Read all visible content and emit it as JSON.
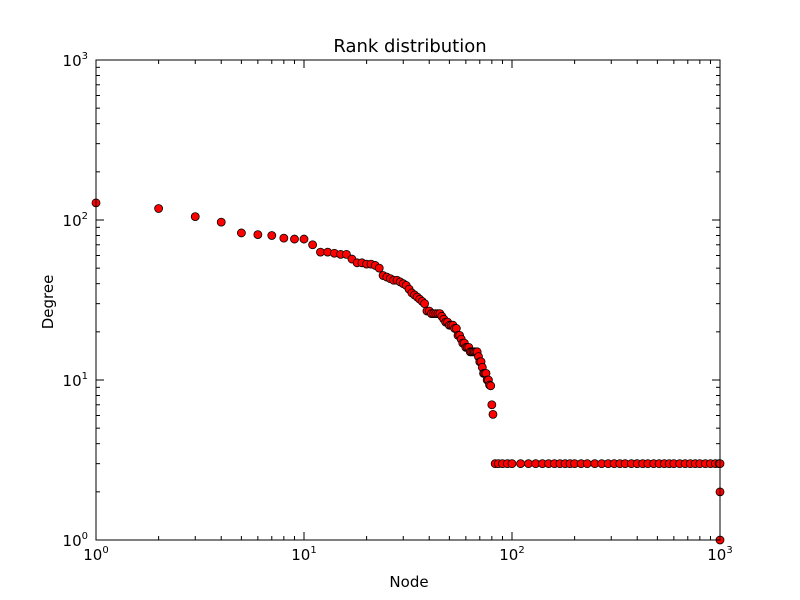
{
  "chart_data": {
    "type": "scatter",
    "title": "Rank distribution",
    "xlabel": "Node",
    "ylabel": "Degree",
    "xscale": "log",
    "yscale": "log",
    "xlim": [
      1,
      1000
    ],
    "ylim": [
      1,
      1000
    ],
    "grid": false,
    "legend": "none",
    "marker_color": "#ff0000",
    "marker_edge": "#000000",
    "x_ticks": [
      {
        "base": "10",
        "exp": "0",
        "value": 1
      },
      {
        "base": "10",
        "exp": "1",
        "value": 10
      },
      {
        "base": "10",
        "exp": "2",
        "value": 100
      },
      {
        "base": "10",
        "exp": "3",
        "value": 1000
      }
    ],
    "y_ticks": [
      {
        "base": "10",
        "exp": "0",
        "value": 1
      },
      {
        "base": "10",
        "exp": "1",
        "value": 10
      },
      {
        "base": "10",
        "exp": "2",
        "value": 100
      },
      {
        "base": "10",
        "exp": "3",
        "value": 1000
      }
    ],
    "points": [
      [
        1,
        128
      ],
      [
        2,
        118
      ],
      [
        3,
        105
      ],
      [
        4,
        97
      ],
      [
        5,
        83
      ],
      [
        6,
        81
      ],
      [
        7,
        80
      ],
      [
        8,
        77
      ],
      [
        9,
        76
      ],
      [
        10,
        76
      ],
      [
        11,
        70
      ],
      [
        12,
        63
      ],
      [
        13,
        63
      ],
      [
        14,
        62
      ],
      [
        15,
        61
      ],
      [
        16,
        61
      ],
      [
        17,
        57
      ],
      [
        18,
        54
      ],
      [
        19,
        54
      ],
      [
        20,
        53
      ],
      [
        21,
        53
      ],
      [
        22,
        52
      ],
      [
        23,
        50
      ],
      [
        24,
        45
      ],
      [
        25,
        44
      ],
      [
        26,
        43
      ],
      [
        27,
        42
      ],
      [
        28,
        42
      ],
      [
        29,
        41
      ],
      [
        30,
        40
      ],
      [
        31,
        39
      ],
      [
        32,
        37
      ],
      [
        33,
        35
      ],
      [
        34,
        34
      ],
      [
        35,
        33
      ],
      [
        36,
        32
      ],
      [
        37,
        31
      ],
      [
        38,
        30
      ],
      [
        39,
        27
      ],
      [
        40,
        27
      ],
      [
        41,
        26
      ],
      [
        42,
        26
      ],
      [
        43,
        26
      ],
      [
        44,
        26
      ],
      [
        45,
        26
      ],
      [
        46,
        25
      ],
      [
        47,
        24
      ],
      [
        48,
        23
      ],
      [
        49,
        23
      ],
      [
        50,
        22
      ],
      [
        51,
        22
      ],
      [
        52,
        22
      ],
      [
        53,
        21
      ],
      [
        54,
        21
      ],
      [
        55,
        19
      ],
      [
        56,
        19
      ],
      [
        57,
        18
      ],
      [
        58,
        17
      ],
      [
        59,
        17
      ],
      [
        60,
        16
      ],
      [
        61,
        16
      ],
      [
        62,
        16
      ],
      [
        63,
        15
      ],
      [
        64,
        15
      ],
      [
        65,
        15
      ],
      [
        66,
        15
      ],
      [
        67,
        15
      ],
      [
        68,
        15
      ],
      [
        69,
        14
      ],
      [
        70,
        13
      ],
      [
        71,
        13
      ],
      [
        72,
        12
      ],
      [
        73,
        11
      ],
      [
        74,
        11
      ],
      [
        75,
        11
      ],
      [
        76,
        10
      ],
      [
        77,
        10
      ],
      [
        78,
        9.3
      ],
      [
        79,
        9.2
      ],
      [
        80,
        7
      ],
      [
        81,
        6.1
      ],
      [
        83,
        3
      ],
      [
        86,
        3
      ],
      [
        90,
        3
      ],
      [
        95,
        3
      ],
      [
        100,
        3
      ],
      [
        110,
        3
      ],
      [
        120,
        3
      ],
      [
        130,
        3
      ],
      [
        140,
        3
      ],
      [
        150,
        3
      ],
      [
        160,
        3
      ],
      [
        170,
        3
      ],
      [
        180,
        3
      ],
      [
        190,
        3
      ],
      [
        200,
        3
      ],
      [
        215,
        3
      ],
      [
        230,
        3
      ],
      [
        250,
        3
      ],
      [
        270,
        3
      ],
      [
        290,
        3
      ],
      [
        310,
        3
      ],
      [
        330,
        3
      ],
      [
        350,
        3
      ],
      [
        375,
        3
      ],
      [
        400,
        3
      ],
      [
        425,
        3
      ],
      [
        450,
        3
      ],
      [
        480,
        3
      ],
      [
        510,
        3
      ],
      [
        540,
        3
      ],
      [
        570,
        3
      ],
      [
        600,
        3
      ],
      [
        640,
        3
      ],
      [
        680,
        3
      ],
      [
        720,
        3
      ],
      [
        760,
        3
      ],
      [
        800,
        3
      ],
      [
        850,
        3
      ],
      [
        900,
        3
      ],
      [
        950,
        3
      ],
      [
        990,
        3
      ],
      [
        1000,
        3
      ],
      [
        1000,
        2
      ],
      [
        1000,
        1
      ]
    ]
  }
}
